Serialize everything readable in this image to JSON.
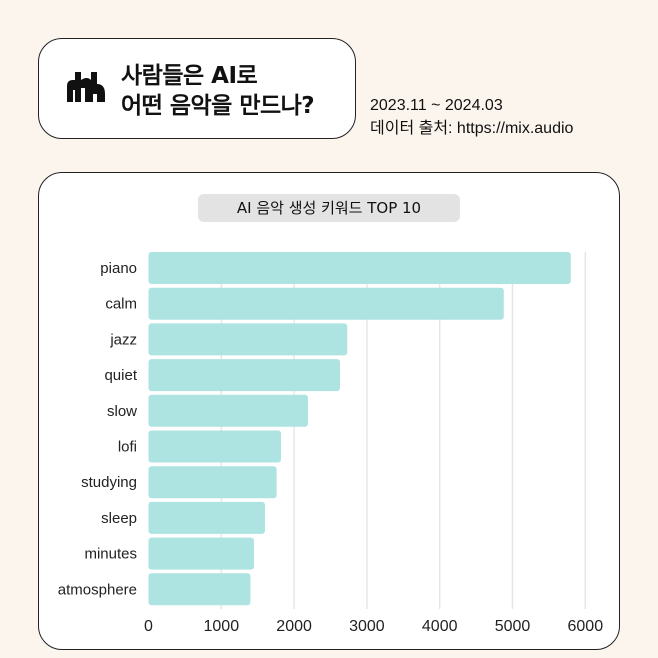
{
  "header": {
    "title_line1": "사람들은 AI로",
    "title_line2": "어떤 음악을 만드나?",
    "period": "2023.11 ~ 2024.03",
    "source": "데이터 출처: https://mix.audio",
    "logo_icon": "mix-audio-logo"
  },
  "chart_data": {
    "type": "bar",
    "orientation": "horizontal",
    "title": "AI 음악 생성 키워드 TOP 10",
    "categories": [
      "piano",
      "calm",
      "jazz",
      "quiet",
      "slow",
      "lofi",
      "studying",
      "sleep",
      "minutes",
      "atmosphere"
    ],
    "values": [
      5800,
      4880,
      2730,
      2630,
      2190,
      1820,
      1760,
      1600,
      1450,
      1400
    ],
    "xlim": [
      0,
      6000
    ],
    "xticks": [
      0,
      1000,
      2000,
      3000,
      4000,
      5000,
      6000
    ],
    "grid": true,
    "bar_color": "#ade3e1",
    "grid_color": "#e6e6e6"
  }
}
